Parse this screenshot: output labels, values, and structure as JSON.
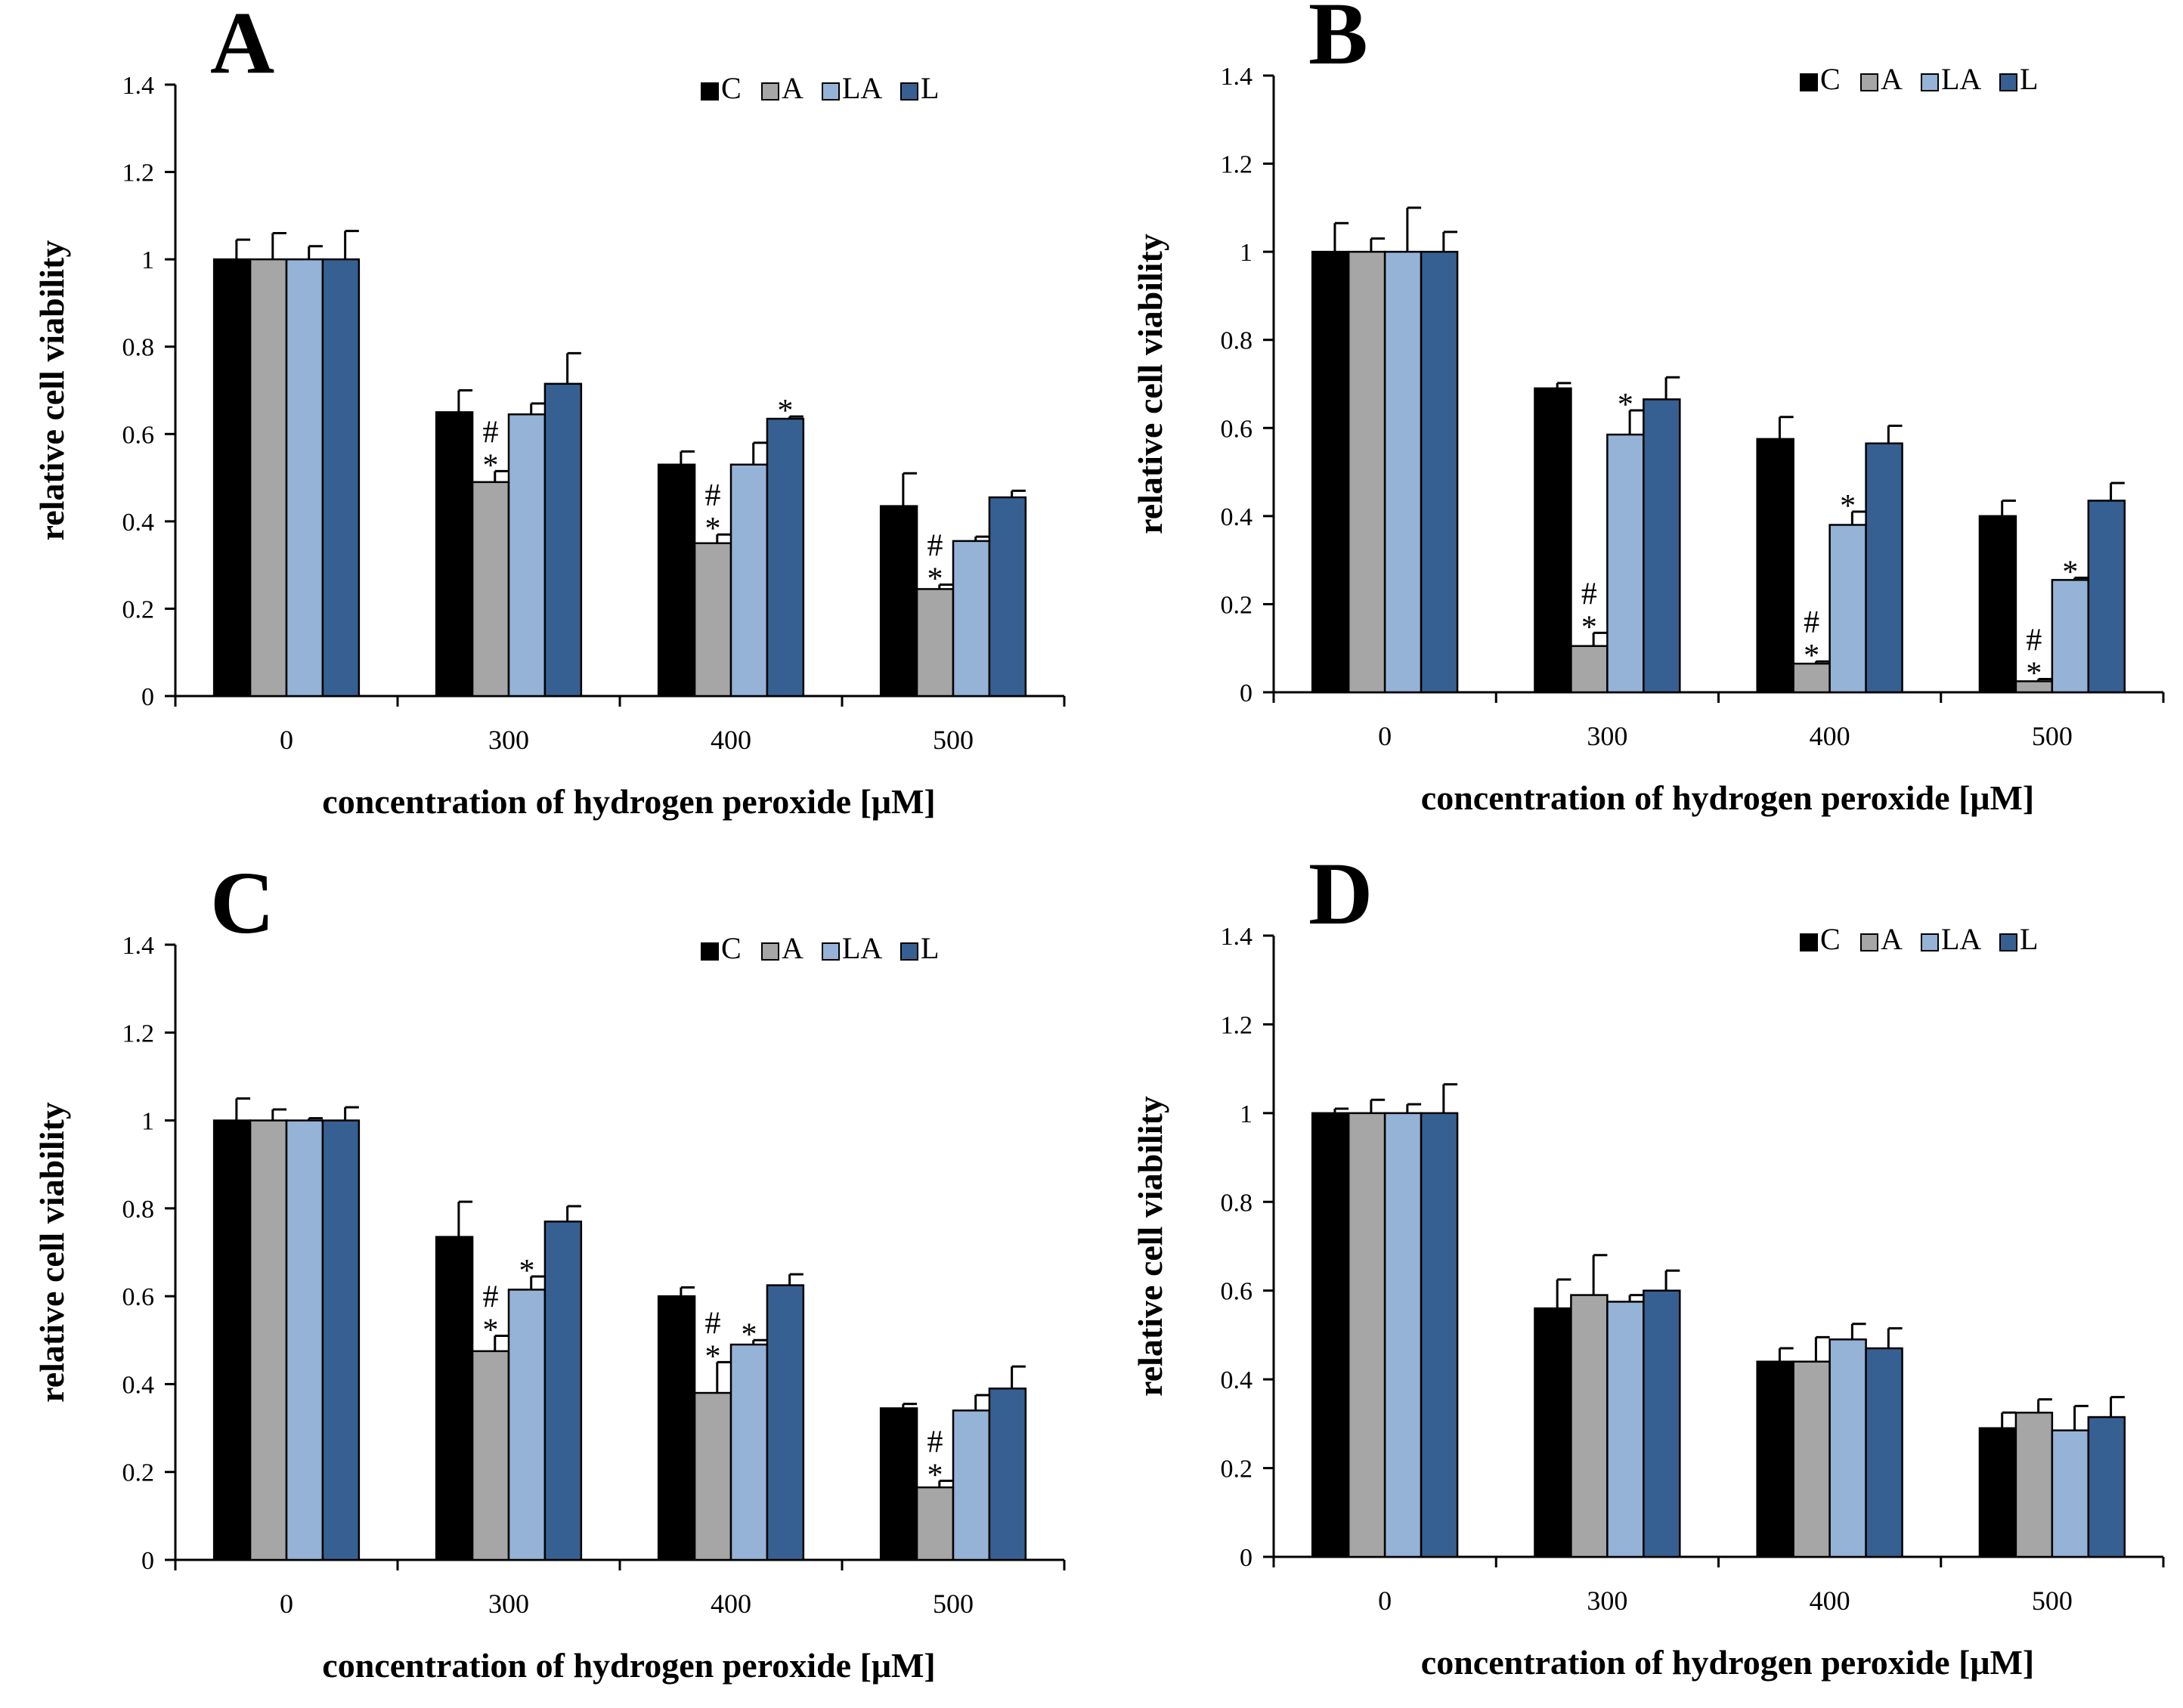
{
  "chart_data": [
    {
      "type": "bar",
      "panel": "A",
      "categories": [
        "0",
        "300",
        "400",
        "500"
      ],
      "series": [
        {
          "name": "C",
          "color": "#000000",
          "values": [
            1.0,
            0.65,
            0.53,
            0.435
          ],
          "errors": [
            0.045,
            0.05,
            0.03,
            0.075
          ],
          "marks": [
            "",
            "",
            "",
            ""
          ]
        },
        {
          "name": "A",
          "color": "#a6a6a6",
          "values": [
            1.0,
            0.49,
            0.35,
            0.245
          ],
          "errors": [
            0.06,
            0.025,
            0.02,
            0.01
          ],
          "marks": [
            "",
            "*#",
            "*#",
            "*#"
          ]
        },
        {
          "name": "LA",
          "color": "#95b3d7",
          "values": [
            1.0,
            0.645,
            0.53,
            0.355
          ],
          "errors": [
            0.03,
            0.025,
            0.05,
            0.01
          ],
          "marks": [
            "",
            "",
            "",
            ""
          ]
        },
        {
          "name": "L",
          "color": "#376092",
          "values": [
            1.0,
            0.715,
            0.635,
            0.455
          ],
          "errors": [
            0.065,
            0.07,
            0.005,
            0.015
          ],
          "marks": [
            "",
            "",
            "*",
            ""
          ]
        }
      ],
      "title": "",
      "xlabel": "concentration of hydrogen peroxide [μM]",
      "ylabel": "relative cell viability",
      "ylim": [
        0,
        1.4
      ],
      "yticks": [
        "0",
        "0.2",
        "0.4",
        "0.6",
        "0.8",
        "1",
        "1.2",
        "1.4"
      ],
      "legend": "top-right"
    },
    {
      "type": "bar",
      "panel": "B",
      "categories": [
        "0",
        "300",
        "400",
        "500"
      ],
      "series": [
        {
          "name": "C",
          "color": "#000000",
          "values": [
            1.0,
            0.69,
            0.575,
            0.4
          ],
          "errors": [
            0.065,
            0.012,
            0.05,
            0.035
          ],
          "marks": [
            "",
            "",
            "",
            ""
          ]
        },
        {
          "name": "A",
          "color": "#a6a6a6",
          "values": [
            1.0,
            0.105,
            0.065,
            0.025
          ],
          "errors": [
            0.03,
            0.03,
            0.005,
            0.005
          ],
          "marks": [
            "",
            "*#",
            "*#",
            "*#"
          ]
        },
        {
          "name": "LA",
          "color": "#95b3d7",
          "values": [
            1.0,
            0.585,
            0.38,
            0.255
          ],
          "errors": [
            0.1,
            0.055,
            0.03,
            0.005
          ],
          "marks": [
            "",
            "*",
            "*",
            "*"
          ]
        },
        {
          "name": "L",
          "color": "#376092",
          "values": [
            1.0,
            0.665,
            0.565,
            0.435
          ],
          "errors": [
            0.045,
            0.05,
            0.04,
            0.04
          ],
          "marks": [
            "",
            "",
            "",
            ""
          ]
        }
      ],
      "title": "",
      "xlabel": "concentration of hydrogen peroxide [μM]",
      "ylabel": "relative cell viability",
      "ylim": [
        0,
        1.4
      ],
      "yticks": [
        "0",
        "0.2",
        "0.4",
        "0.6",
        "0.8",
        "1",
        "1.2",
        "1.4"
      ],
      "legend": "top-right"
    },
    {
      "type": "bar",
      "panel": "C",
      "categories": [
        "0",
        "300",
        "400",
        "500"
      ],
      "series": [
        {
          "name": "C",
          "color": "#000000",
          "values": [
            1.0,
            0.735,
            0.6,
            0.345
          ],
          "errors": [
            0.05,
            0.08,
            0.02,
            0.01
          ],
          "marks": [
            "",
            "",
            "",
            ""
          ]
        },
        {
          "name": "A",
          "color": "#a6a6a6",
          "values": [
            1.0,
            0.475,
            0.38,
            0.165
          ],
          "errors": [
            0.025,
            0.035,
            0.07,
            0.015
          ],
          "marks": [
            "",
            "*#",
            "*#",
            "*#"
          ]
        },
        {
          "name": "LA",
          "color": "#95b3d7",
          "values": [
            1.0,
            0.615,
            0.49,
            0.34
          ],
          "errors": [
            0.005,
            0.03,
            0.01,
            0.035
          ],
          "marks": [
            "",
            "*",
            "*",
            ""
          ]
        },
        {
          "name": "L",
          "color": "#376092",
          "values": [
            1.0,
            0.77,
            0.625,
            0.39
          ],
          "errors": [
            0.03,
            0.035,
            0.025,
            0.05
          ],
          "marks": [
            "",
            "",
            "",
            ""
          ]
        }
      ],
      "title": "",
      "xlabel": "concentration of hydrogen peroxide [μM]",
      "ylabel": "relative cell viability",
      "ylim": [
        0,
        1.4
      ],
      "yticks": [
        "0",
        "0.2",
        "0.4",
        "0.6",
        "0.8",
        "1",
        "1.2",
        "1.4"
      ],
      "legend": "top-right"
    },
    {
      "type": "bar",
      "panel": "D",
      "categories": [
        "0",
        "300",
        "400",
        "500"
      ],
      "series": [
        {
          "name": "C",
          "color": "#000000",
          "values": [
            1.0,
            0.56,
            0.44,
            0.29
          ],
          "errors": [
            0.01,
            0.065,
            0.03,
            0.035
          ],
          "marks": [
            "",
            "",
            "",
            ""
          ]
        },
        {
          "name": "A",
          "color": "#a6a6a6",
          "values": [
            1.0,
            0.59,
            0.44,
            0.325
          ],
          "errors": [
            0.03,
            0.09,
            0.055,
            0.03
          ],
          "marks": [
            "",
            "",
            "",
            ""
          ]
        },
        {
          "name": "LA",
          "color": "#95b3d7",
          "values": [
            1.0,
            0.575,
            0.49,
            0.285
          ],
          "errors": [
            0.02,
            0.015,
            0.035,
            0.055
          ],
          "marks": [
            "",
            "",
            "",
            ""
          ]
        },
        {
          "name": "L",
          "color": "#376092",
          "values": [
            1.0,
            0.6,
            0.47,
            0.315
          ],
          "errors": [
            0.065,
            0.045,
            0.045,
            0.045
          ],
          "marks": [
            "",
            "",
            "",
            ""
          ]
        }
      ],
      "title": "",
      "xlabel": "concentration of hydrogen peroxide [μM]",
      "ylabel": "relative cell viability",
      "ylim": [
        0,
        1.4
      ],
      "yticks": [
        "0",
        "0.2",
        "0.4",
        "0.6",
        "0.8",
        "1",
        "1.2",
        "1.4"
      ],
      "legend": "top-right"
    }
  ]
}
